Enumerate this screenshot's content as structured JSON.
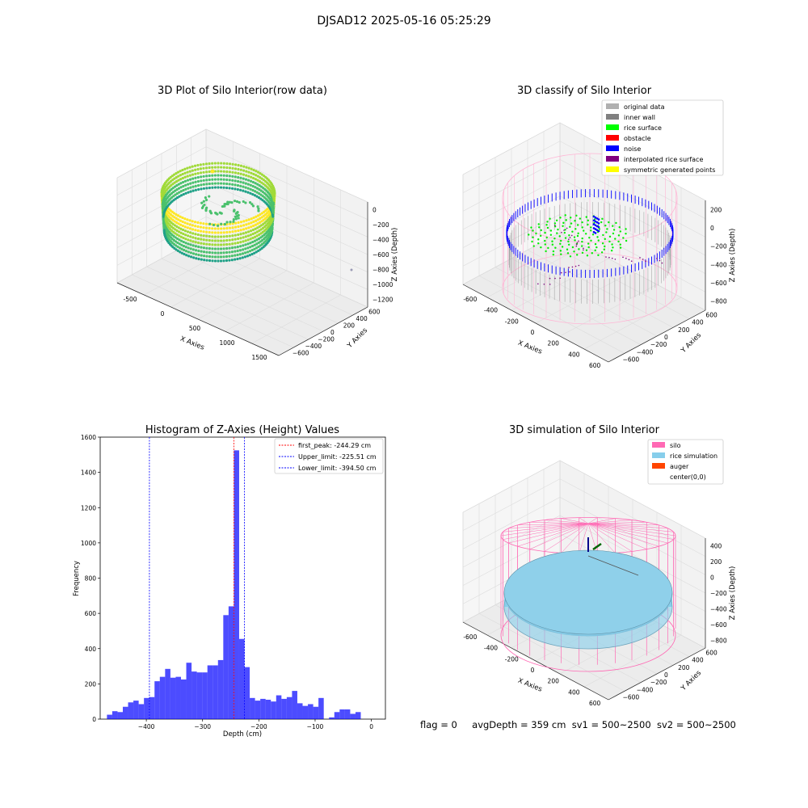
{
  "figure": {
    "suptitle": "DJSAD12 2025-05-16 05:25:29",
    "status": {
      "flag": "flag = 0",
      "avg_depth": "avgDepth = 359 cm",
      "sv1": "sv1 = 500~2500",
      "sv2": "sv2 = 500~2500"
    }
  },
  "panels": {
    "raw": {
      "title": "3D Plot of Silo Interior(row data)",
      "xlabel": "X Axies",
      "ylabel": "Y Axies",
      "zlabel": "Z Axies (Depth)",
      "xticks": [
        "-500",
        "0",
        "500",
        "1000",
        "1500"
      ],
      "yticks": [
        "600",
        "400",
        "200",
        "0",
        "−200",
        "−400",
        "−600"
      ],
      "zticks": [
        "0",
        "−200",
        "−400",
        "−600",
        "−800",
        "−1000",
        "−1200"
      ],
      "colormap": [
        "#fde725",
        "#a0da39",
        "#4ac16d",
        "#1fa187"
      ]
    },
    "classify": {
      "title": "3D classify of Silo Interior",
      "xlabel": "X Axies",
      "ylabel": "Y Axies",
      "zlabel": "Z Axies (Depth)",
      "xticks": [
        "-600",
        "-400",
        "-200",
        "0",
        "200",
        "400",
        "600"
      ],
      "yticks": [
        "600",
        "400",
        "200",
        "0",
        "−200",
        "−400",
        "−600"
      ],
      "zticks": [
        "200",
        "0",
        "−200",
        "−400",
        "−600",
        "−800"
      ],
      "legend": [
        {
          "label": "original data",
          "color": "#b0b0b0"
        },
        {
          "label": "inner wall",
          "color": "#808080"
        },
        {
          "label": "rice surface",
          "color": "#00ff00"
        },
        {
          "label": "obstacle",
          "color": "#ff0000"
        },
        {
          "label": "noise",
          "color": "#0000ff"
        },
        {
          "label": "interpolated rice surface",
          "color": "#800080"
        },
        {
          "label": "symmetric generated points",
          "color": "#ffff00"
        }
      ]
    },
    "simulation": {
      "title": "3D simulation of Silo Interior",
      "xlabel": "X Axies",
      "ylabel": "Y Axies",
      "zlabel": "Z Axies (Depth)",
      "xticks": [
        "-600",
        "-400",
        "-200",
        "0",
        "200",
        "400",
        "600"
      ],
      "yticks": [
        "600",
        "400",
        "200",
        "0",
        "−200",
        "−400",
        "−600"
      ],
      "zticks": [
        "400",
        "200",
        "0",
        "−200",
        "−400",
        "−600",
        "−800"
      ],
      "legend": [
        {
          "label": "silo",
          "color": "#ff69b4"
        },
        {
          "label": "rice simulation",
          "color": "#87ceeb"
        },
        {
          "label": "auger",
          "color": "#ff4500"
        },
        {
          "label": "center(0,0)",
          "color": "#ffffff"
        }
      ]
    }
  },
  "chart_data": [
    {
      "type": "scatter",
      "title": "3D Plot of Silo Interior(row data)",
      "xlabel": "X Axies",
      "ylabel": "Y Axies",
      "zlabel": "Z Axies (Depth)",
      "xlim": [
        -700,
        1800
      ],
      "ylim": [
        -650,
        650
      ],
      "zlim": [
        -1250,
        50
      ],
      "description_series": [
        {
          "values": []
        }
      ]
    },
    {
      "type": "scatter",
      "title": "3D classify of Silo Interior",
      "xlabel": "X Axies",
      "ylabel": "Y Axies",
      "zlabel": "Z Axies (Depth)",
      "xlim": [
        -650,
        650
      ],
      "ylim": [
        -650,
        650
      ],
      "zlim": [
        -900,
        300
      ]
    },
    {
      "type": "bar",
      "title": "Histogram of Z-Axies (Height) Values",
      "xlabel": "Depth (cm)",
      "ylabel": "Frequency",
      "xlim": [
        -482,
        25
      ],
      "ylim": [
        0,
        1600
      ],
      "xticks": [
        "−400",
        "−300",
        "−200",
        "−100",
        "0"
      ],
      "yticks": [
        "0",
        "200",
        "400",
        "600",
        "800",
        "1000",
        "1200",
        "1400",
        "1600"
      ],
      "bin_start": -470,
      "bin_width": 9.4,
      "values": [
        25,
        45,
        40,
        70,
        95,
        105,
        85,
        120,
        125,
        215,
        240,
        285,
        235,
        240,
        225,
        320,
        270,
        265,
        265,
        305,
        305,
        335,
        590,
        640,
        1525,
        455,
        295,
        120,
        105,
        115,
        110,
        100,
        135,
        115,
        125,
        160,
        90,
        75,
        85,
        70,
        120,
        0,
        10,
        40,
        55,
        55,
        30,
        40
      ],
      "color": "#0000ff",
      "vlines": [
        {
          "label": "first_peak: -244.29 cm",
          "x": -244.29,
          "color": "#ff0000"
        },
        {
          "label": "Upper_limit: -225.51 cm",
          "x": -225.51,
          "color": "#0000ff"
        },
        {
          "label": "Lower_limit: -394.50 cm",
          "x": -394.5,
          "color": "#0000ff"
        }
      ],
      "legend_position": "top-right"
    },
    {
      "type": "scatter",
      "title": "3D simulation of Silo Interior",
      "xlabel": "X Axies",
      "ylabel": "Y Axies",
      "zlabel": "Z Axies (Depth)",
      "xlim": [
        -650,
        650
      ],
      "ylim": [
        -650,
        650
      ],
      "zlim": [
        -900,
        450
      ]
    }
  ]
}
